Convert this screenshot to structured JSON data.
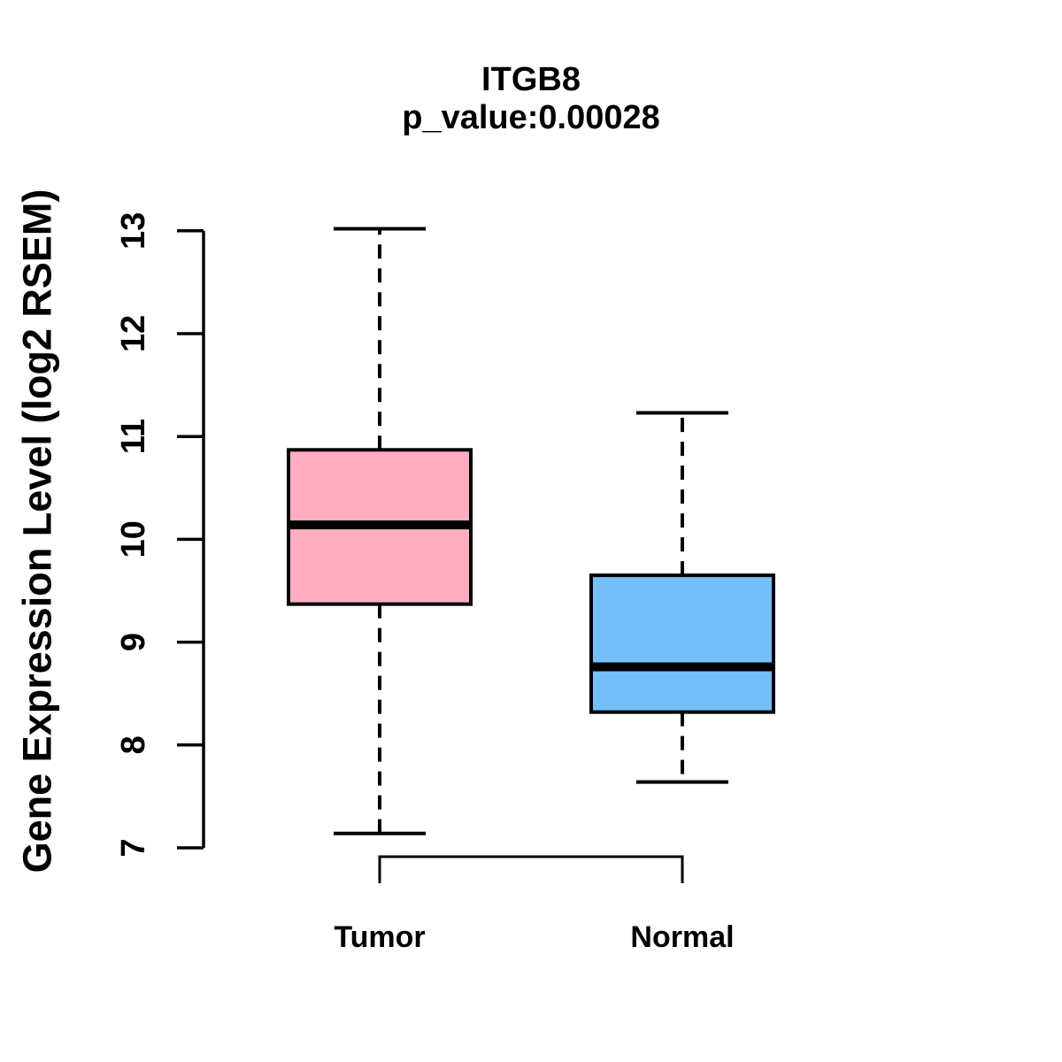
{
  "chart_data": {
    "type": "boxplot",
    "title": "ITGB8",
    "subtitle": "p_value:0.00028",
    "ylabel": "Gene Expression Level (log2 RSEM)",
    "xlabel": "",
    "y_axis": {
      "min": 7,
      "max": 13,
      "ticks": [
        7,
        8,
        9,
        10,
        11,
        12,
        13
      ]
    },
    "categories": [
      "Tumor",
      "Normal"
    ],
    "groups": [
      {
        "label": "Tumor",
        "fill_color": "#FFAEC1",
        "whisker_low": 7.14,
        "q1": 9.37,
        "median": 10.14,
        "q3": 10.87,
        "whisker_high": 13.02
      },
      {
        "label": "Normal",
        "fill_color": "#74BFF8",
        "whisker_low": 7.64,
        "q1": 8.32,
        "median": 8.76,
        "q3": 9.65,
        "whisker_high": 11.23
      }
    ],
    "comparison_bracket": {
      "groups": [
        "Tumor",
        "Normal"
      ]
    },
    "style": {
      "border_color": "#000000",
      "median_color": "#000000",
      "axis_color": "#000000",
      "whisker_line": "dashed",
      "background": "#FFFFFF",
      "grid": false,
      "legend": "none"
    }
  }
}
